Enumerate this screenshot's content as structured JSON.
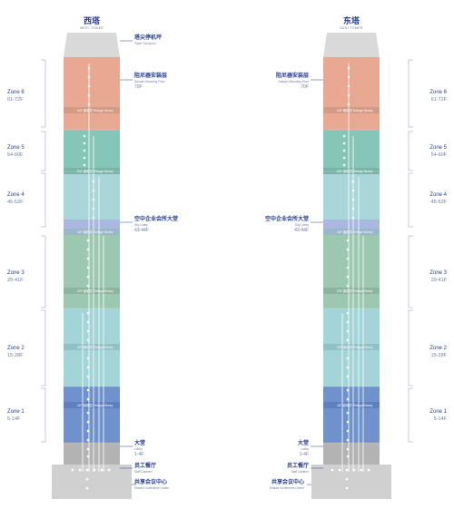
{
  "towers": {
    "west": {
      "name_cn": "西塔",
      "name_en": "WEST TOWER"
    },
    "east": {
      "name_cn": "东塔",
      "name_en": "EAST TOWER"
    }
  },
  "zones": [
    {
      "name": "Zone 6",
      "range": "61-72F",
      "color": "#e9a892"
    },
    {
      "name": "Zone 5",
      "range": "54-60F",
      "color": "#86c6b8"
    },
    {
      "name": "Zone 4",
      "range": "45-52F",
      "color": "#a9d7d9"
    },
    {
      "name": "Zone 3",
      "range": "29-41F",
      "color": "#9dc8b0"
    },
    {
      "name": "Zone 2",
      "range": "15-28F",
      "color": "#a2d4d8"
    },
    {
      "name": "Zone 1",
      "range": "5-14F",
      "color": "#7092cc"
    }
  ],
  "refuge_labels": [
    "64F 避难层  Refuge Storey",
    "53F 避难层  Refuge Storey",
    "42F 避难层  Refuge Storey",
    "32F 避难层  Refuge Storey",
    "20F 避难层  Refuge Storey",
    "11F 避难层  Refuge Storey"
  ],
  "callouts": {
    "apron": {
      "cn": "塔尖停机坪",
      "en": "Tower Top Apron"
    },
    "damper": {
      "cn": "阻尼器安装层",
      "en": "Damper Mounting Floor",
      "floor": "70F"
    },
    "sky_lobby": {
      "cn": "空中企业会所大堂",
      "en": "Sky Lobby",
      "floors": "43-44F"
    },
    "lobby": {
      "cn": "大堂",
      "en": "Lobby",
      "floors": "1-4F"
    },
    "staff_canteen": {
      "cn": "员工餐厅",
      "en": "Staff Canteen"
    },
    "conference": {
      "cn": "共享会议中心",
      "en": "Shared Conference Center"
    }
  },
  "colors": {
    "sky_lobby": "#aab7de",
    "refuge_band": "#8aa0c4",
    "lobby": "#b3b3b3",
    "base": "#d0d0d0",
    "top": "#d9d9d9",
    "accent": "#2a3f8f"
  }
}
